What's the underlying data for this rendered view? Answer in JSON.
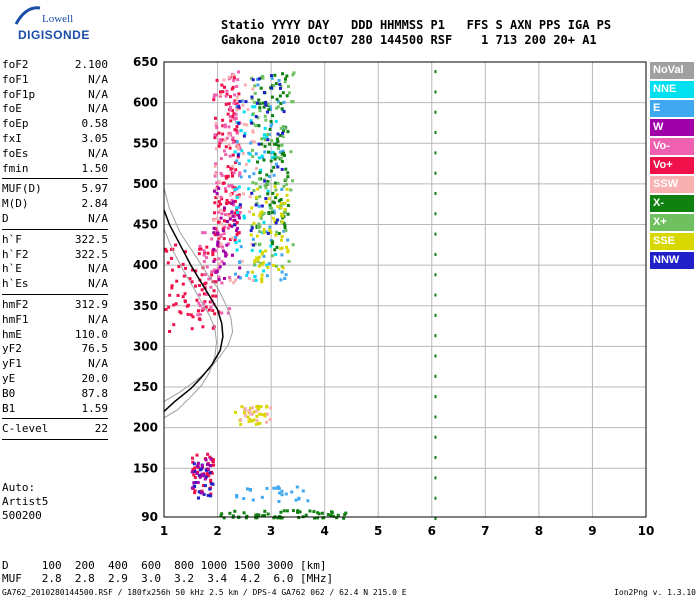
{
  "logo": {
    "line1": "Lowell",
    "line2": "DIGISONDE"
  },
  "header": {
    "line1": "Statio YYYY DAY   DDD HHMMSS P1   FFS S AXN PPS IGA PS",
    "line2": "Gakona 2010 Oct07 280 144500 RSF    1 713 200 20+ A1"
  },
  "params_group1": [
    {
      "name": "foF2",
      "value": "2.100"
    },
    {
      "name": "foF1",
      "value": "N/A"
    },
    {
      "name": "foF1p",
      "value": "N/A"
    },
    {
      "name": "foE",
      "value": "N/A"
    },
    {
      "name": "foEp",
      "value": "0.58"
    },
    {
      "name": "fxI",
      "value": "3.05"
    },
    {
      "name": "foEs",
      "value": "N/A"
    },
    {
      "name": "fmin",
      "value": "1.50"
    }
  ],
  "params_group2": [
    {
      "name": "MUF(D)",
      "value": "5.97"
    },
    {
      "name": "M(D)",
      "value": "2.84"
    },
    {
      "name": "D",
      "value": "N/A"
    }
  ],
  "params_group3": [
    {
      "name": "h`F",
      "value": "322.5"
    },
    {
      "name": "h`F2",
      "value": "322.5"
    },
    {
      "name": "h`E",
      "value": "N/A"
    },
    {
      "name": "h`Es",
      "value": "N/A"
    }
  ],
  "params_group4": [
    {
      "name": "hmF2",
      "value": "312.9"
    },
    {
      "name": "hmF1",
      "value": "N/A"
    },
    {
      "name": "hmE",
      "value": "110.0"
    },
    {
      "name": "yF2",
      "value": "76.5"
    },
    {
      "name": "yF1",
      "value": "N/A"
    },
    {
      "name": "yE",
      "value": "20.0"
    },
    {
      "name": "B0",
      "value": "87.8"
    },
    {
      "name": "B1",
      "value": "1.59"
    }
  ],
  "params_group5": [
    {
      "name": "C-level",
      "value": "22"
    }
  ],
  "auto": {
    "line1": "Auto:",
    "line2": "Artist5",
    "line3": "500200"
  },
  "legend": [
    {
      "label": "NoVal",
      "color": "#a0a0a0"
    },
    {
      "label": "NNE",
      "color": "#00e0f0"
    },
    {
      "label": "E",
      "color": "#40a8f0"
    },
    {
      "label": "W",
      "color": "#a000a8"
    },
    {
      "label": "Vo-",
      "color": "#f060b0"
    },
    {
      "label": "Vo+",
      "color": "#f0104a"
    },
    {
      "label": "SSW",
      "color": "#f8b0b0"
    },
    {
      "label": "X-",
      "color": "#108010"
    },
    {
      "label": "X+",
      "color": "#70c060"
    },
    {
      "label": "SSE",
      "color": "#d8d800"
    },
    {
      "label": "NNW",
      "color": "#2020c8"
    }
  ],
  "table": {
    "row1": "D     100  200  400  600  800 1000 1500 3000 [km]",
    "row2": "MUF   2.8  2.8  2.9  3.0  3.2  3.4  4.2  6.0 [MHz]"
  },
  "footer": "GA762_2010280144500.RSF / 180fx256h 50 kHz 2.5 km / DPS-4 GA762 062 / 62.4 N 215.0 E",
  "version": "Ion2Png v. 1.3.10",
  "chart_data": {
    "type": "scatter",
    "title": "",
    "xlabel": "",
    "ylabel": "",
    "xlim": [
      1,
      10
    ],
    "ylim": [
      90,
      650
    ],
    "x_ticks": [
      "1",
      "2",
      "3",
      "4",
      "5",
      "6",
      "7",
      "8",
      "9",
      "10"
    ],
    "y_ticks": [
      "90",
      "150",
      "200",
      "250",
      "300",
      "350",
      "400",
      "450",
      "500",
      "550",
      "600",
      "650"
    ],
    "grid": true,
    "legend_placement": "right",
    "profile_curve": {
      "f": [
        1.0,
        1.2,
        1.5,
        1.7,
        1.9,
        2.05,
        2.1,
        2.08,
        2.0,
        1.85,
        1.7,
        1.5,
        1.3,
        1.1,
        1.0
      ],
      "h": [
        220,
        232,
        248,
        262,
        278,
        295,
        312,
        328,
        345,
        362,
        378,
        400,
        425,
        450,
        468
      ]
    },
    "profile_upper": {
      "f": [
        1.0,
        1.3,
        1.6,
        1.85,
        2.05,
        2.2,
        2.28,
        2.25,
        2.15,
        2.0,
        1.8,
        1.55,
        1.3,
        1.1,
        1.0
      ],
      "h": [
        232,
        244,
        258,
        272,
        288,
        302,
        318,
        335,
        352,
        372,
        390,
        415,
        440,
        470,
        495
      ]
    },
    "profile_lower": {
      "f": [
        1.0,
        1.25,
        1.5,
        1.7,
        1.85,
        1.95,
        1.98,
        1.95,
        1.85,
        1.7,
        1.55,
        1.35,
        1.15,
        1.0
      ],
      "h": [
        212,
        222,
        238,
        252,
        268,
        288,
        305,
        322,
        338,
        355,
        372,
        395,
        420,
        445
      ]
    },
    "clusters": [
      {
        "series": "Vo+",
        "f": [
          1.0,
          2.0
        ],
        "h": [
          320,
          430
        ],
        "count": 90
      },
      {
        "series": "Vo-",
        "f": [
          1.6,
          2.2
        ],
        "h": [
          340,
          450
        ],
        "count": 50
      },
      {
        "series": "Vo+",
        "f": [
          1.9,
          2.4
        ],
        "h": [
          430,
          640
        ],
        "count": 120
      },
      {
        "series": "Vo-",
        "f": [
          1.9,
          2.4
        ],
        "h": [
          460,
          640
        ],
        "count": 70
      },
      {
        "series": "SSW",
        "f": [
          1.9,
          2.7
        ],
        "h": [
          380,
          640
        ],
        "count": 60
      },
      {
        "series": "W",
        "f": [
          1.9,
          2.4
        ],
        "h": [
          380,
          500
        ],
        "count": 40
      },
      {
        "series": "E",
        "f": [
          2.3,
          3.3
        ],
        "h": [
          380,
          640
        ],
        "count": 70
      },
      {
        "series": "NNE",
        "f": [
          2.3,
          3.1
        ],
        "h": [
          380,
          600
        ],
        "count": 50
      },
      {
        "series": "X-",
        "f": [
          2.7,
          3.3
        ],
        "h": [
          420,
          640
        ],
        "count": 90
      },
      {
        "series": "X+",
        "f": [
          2.6,
          3.4
        ],
        "h": [
          400,
          640
        ],
        "count": 90
      },
      {
        "series": "SSE",
        "f": [
          2.6,
          3.3
        ],
        "h": [
          380,
          500
        ],
        "count": 60
      },
      {
        "series": "NNW",
        "f": [
          2.2,
          3.3
        ],
        "h": [
          400,
          640
        ],
        "count": 40
      },
      {
        "series": "Vo+",
        "f": [
          1.5,
          1.9
        ],
        "h": [
          120,
          170
        ],
        "count": 40
      },
      {
        "series": "NNW",
        "f": [
          1.5,
          1.9
        ],
        "h": [
          115,
          160
        ],
        "count": 25
      },
      {
        "series": "W",
        "f": [
          1.5,
          1.9
        ],
        "h": [
          120,
          165
        ],
        "count": 20
      },
      {
        "series": "SSE",
        "f": [
          2.3,
          2.9
        ],
        "h": [
          205,
          230
        ],
        "count": 30
      },
      {
        "series": "SSW",
        "f": [
          2.4,
          3.0
        ],
        "h": [
          208,
          228
        ],
        "count": 15
      },
      {
        "series": "X-",
        "f": [
          2.0,
          4.4
        ],
        "h": [
          90,
          100
        ],
        "count": 60
      },
      {
        "series": "E",
        "f": [
          2.3,
          3.7
        ],
        "h": [
          110,
          130
        ],
        "count": 25
      }
    ],
    "line_6mhz": {
      "f": 6.05,
      "h": [
        90,
        640
      ],
      "series": "X-"
    }
  }
}
